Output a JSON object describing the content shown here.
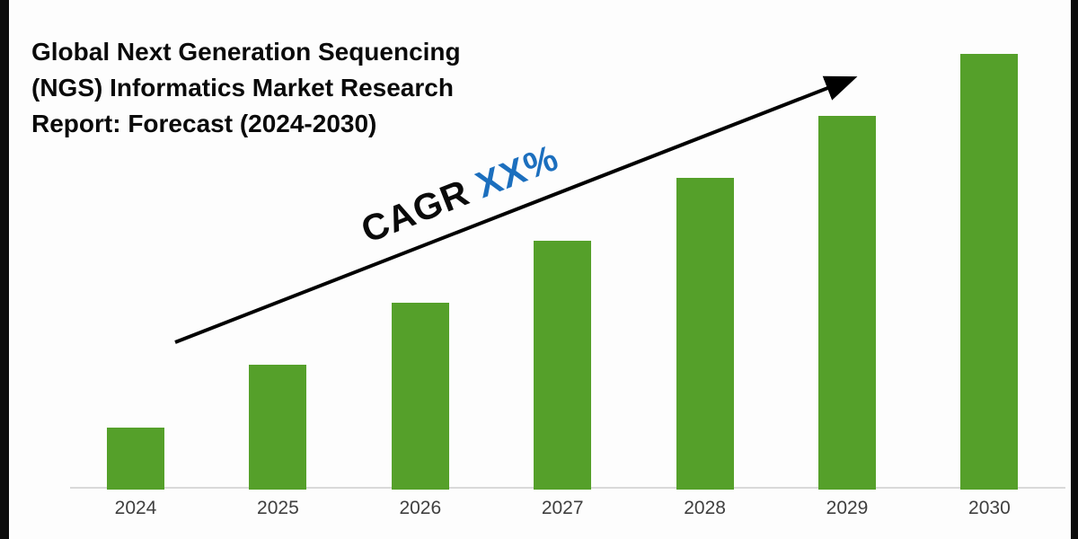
{
  "page": {
    "background_color": "#fdfdfd",
    "letterbox_color": "#0c0c0c"
  },
  "title": {
    "text": "Global Next Generation Sequencing\n(NGS) Informatics Market Research\nReport: Forecast (2024-2030)",
    "color": "#0a0a0a"
  },
  "annotation": {
    "prefix": "CAGR ",
    "value": "XX%",
    "prefix_color": "#0a0a0a",
    "value_color": "#1c6fbe",
    "arrow_color": "#000000"
  },
  "chart_data": {
    "type": "bar",
    "title": "Global Next Generation Sequencing (NGS) Informatics Market Research Report: Forecast (2024-2030)",
    "xlabel": "",
    "ylabel": "",
    "categories": [
      "2024",
      "2025",
      "2026",
      "2027",
      "2028",
      "2029",
      "2030"
    ],
    "values_relative": [
      1,
      2,
      3,
      4,
      5,
      6,
      7
    ],
    "value_axis_labels_visible": false,
    "grid": false,
    "legend_position": "none",
    "bar_color": "#55a02a",
    "axis_line_color": "#d9d9d9",
    "tick_label_color": "#3f3f3f",
    "annotation_text": "CAGR XX%"
  }
}
